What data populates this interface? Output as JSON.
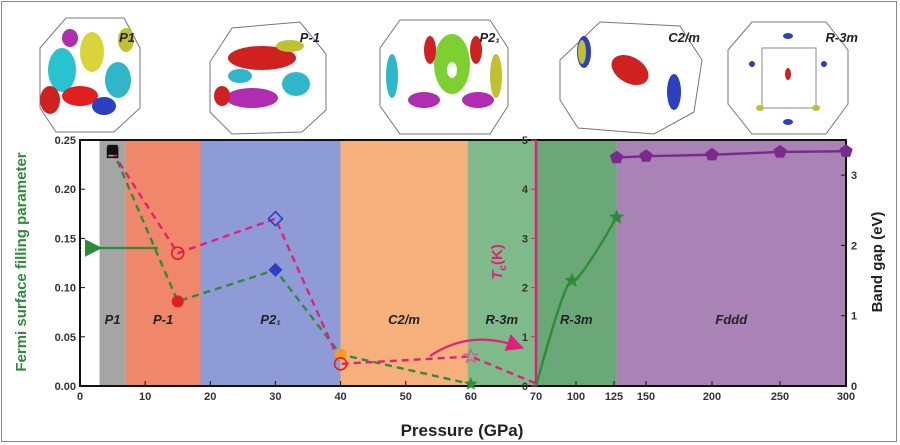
{
  "chart_data": {
    "type": "scatter",
    "xlabel": "Pressure (GPa)",
    "ylabel_left": "Fermi surface filling parameter",
    "ylabel_mid": "T_c(K)",
    "ylabel_right": "Band gap (eV)",
    "x_ticks_left": [
      "0",
      "10",
      "20",
      "30",
      "40",
      "50",
      "60",
      "70"
    ],
    "x_ticks_right": [
      "100",
      "125",
      "150",
      "200",
      "250",
      "300"
    ],
    "y_ticks_left": [
      "0.00",
      "0.05",
      "0.10",
      "0.15",
      "0.20",
      "0.25"
    ],
    "y_ticks_mid": [
      "0",
      "1",
      "2",
      "3",
      "4",
      "5"
    ],
    "y_ticks_right": [
      "0",
      "1",
      "2",
      "3"
    ],
    "ylim_left": [
      0,
      0.25
    ],
    "ylim_mid": [
      0,
      5
    ],
    "ylim_right": [
      0,
      3.5
    ],
    "phase_regions": [
      {
        "label": "P1",
        "from": 3,
        "to": 7,
        "color": "#a5a5a5"
      },
      {
        "label": "P-1",
        "from": 7,
        "to": 18.5,
        "color": "#f0866a"
      },
      {
        "label": "P2₁",
        "from": 18.5,
        "to": 40,
        "color": "#8f9bd6"
      },
      {
        "label": "C2/m",
        "from": 40,
        "to": 59.5,
        "color": "#f5b07c"
      },
      {
        "label": "R-3m",
        "from": 59.5,
        "to": 70,
        "color": "#7fba8a"
      },
      {
        "label": "R-3m",
        "from": 70,
        "to": 127,
        "color": "#6aa878"
      },
      {
        "label": "Fddd",
        "from": 127,
        "to": 300,
        "color": "#a983b5"
      }
    ],
    "fermi_surfaces": [
      "P1",
      "P-1",
      "P2₁",
      "C2/m",
      "R-3m"
    ],
    "series": [
      {
        "name": "Fermi surface filling parameter",
        "axis": "left",
        "color": "#2e8b3a",
        "x": [
          5,
          15,
          30,
          40,
          60
        ],
        "y": [
          0.24,
          0.086,
          0.118,
          0.032,
          0.002
        ]
      },
      {
        "axis": "mid",
        "color": "#e0207a",
        "x": [
          5,
          15,
          30,
          40,
          60,
          70
        ],
        "y": [
          4.75,
          2.7,
          3.4,
          0.45,
          0.6,
          0.05
        ]
      },
      {
        "axis": "right",
        "color": "#2e8b3a",
        "x": [
          70,
          97,
          127
        ],
        "y": [
          0,
          1.5,
          2.4
        ]
      },
      {
        "axis": "right",
        "color": "#7a2a8a",
        "x": [
          127,
          150,
          200,
          250,
          300
        ],
        "y": [
          3.25,
          3.27,
          3.29,
          3.33,
          3.34
        ]
      }
    ]
  }
}
